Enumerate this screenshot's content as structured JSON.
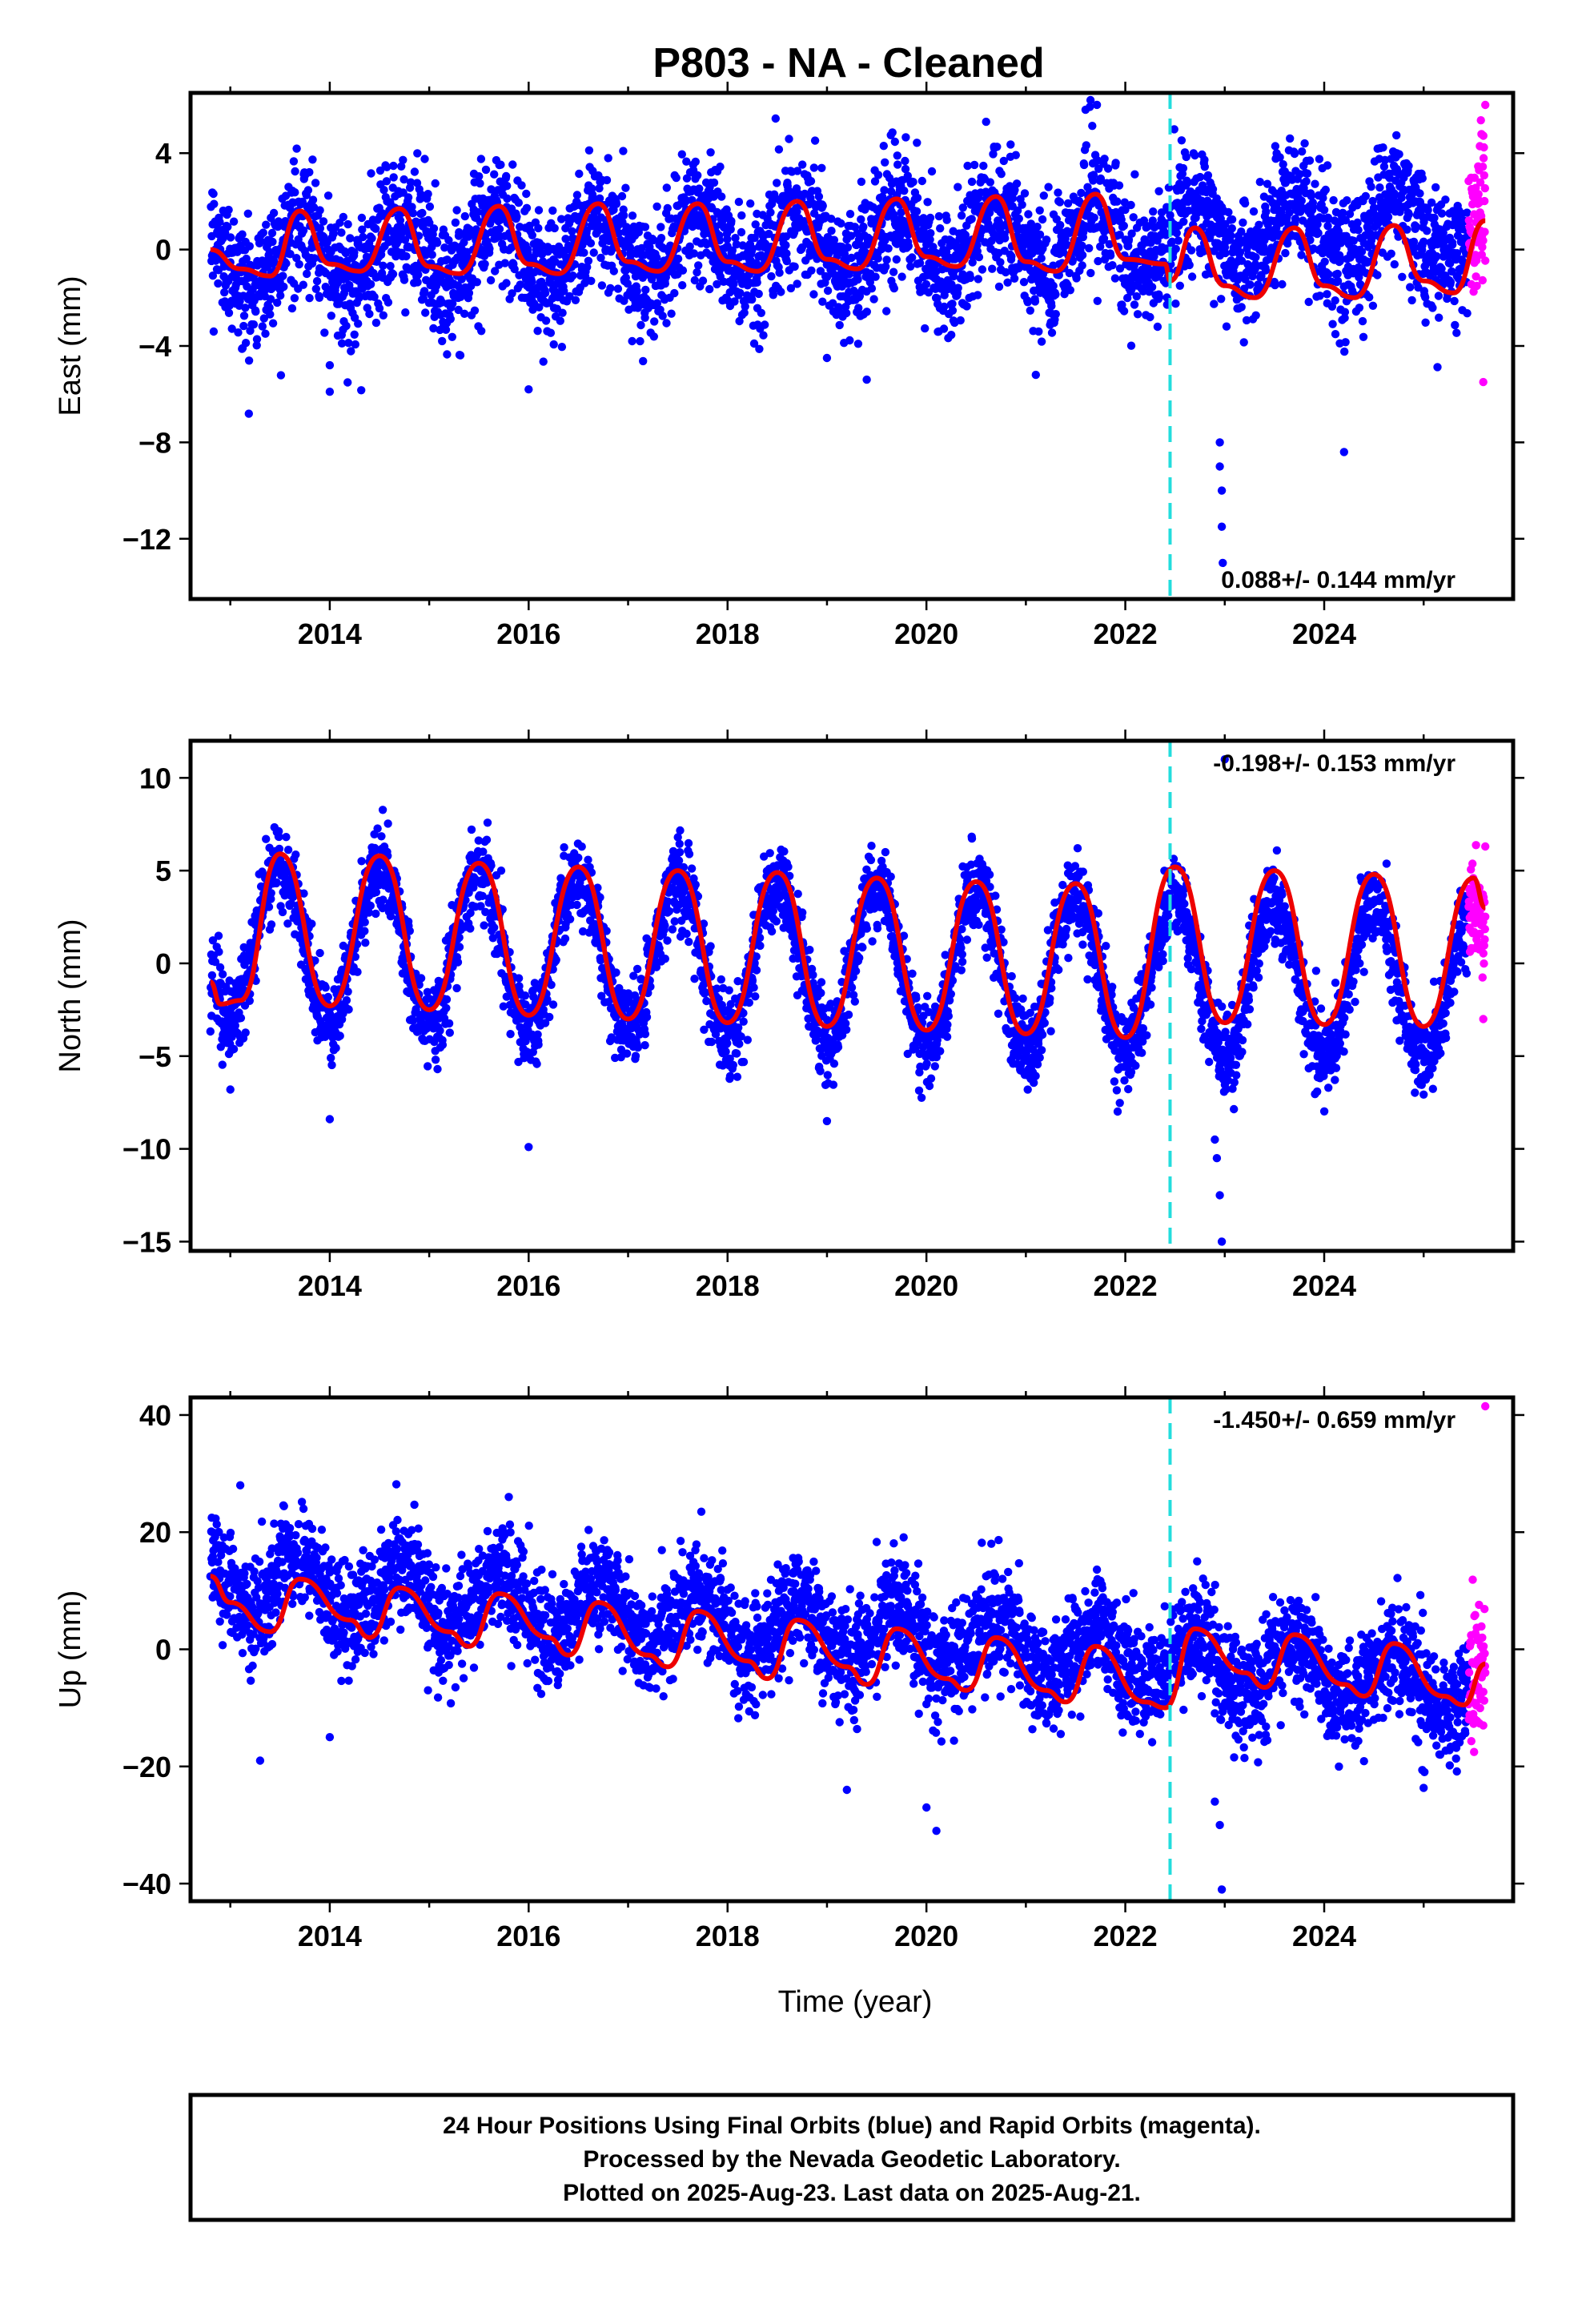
{
  "title": "P803  - NA - Cleaned",
  "x_axis_label": "Time (year)",
  "caption_lines": [
    "24 Hour Positions Using Final Orbits (blue) and Rapid Orbits (magenta).",
    "Processed by the Nevada Geodetic Laboratory.",
    "Plotted on 2025-Aug-23. Last data on 2025-Aug-21."
  ],
  "colors": {
    "final_orbits": "#0000ff",
    "rapid_orbits": "#ff00ff",
    "model_fit": "#ee0000",
    "event_line": "#22dddd"
  },
  "chart_data": [
    {
      "type": "scatter",
      "name": "east",
      "ylabel": "East (mm)",
      "xlim": [
        2012.6,
        2025.9
      ],
      "ylim": [
        -14.5,
        6.5
      ],
      "xticks": [
        2014,
        2016,
        2018,
        2020,
        2022,
        2024
      ],
      "yticks": [
        4,
        0,
        -4,
        -8,
        -12
      ],
      "rate_text": "0.088+/- 0.144 mm/yr",
      "rate_position": "bottom-right",
      "event_line_x": 2022.45,
      "start": 2012.8,
      "end_final": 2025.45,
      "end": 2025.62,
      "seasonal_amplitude": 1.3,
      "seasonal_phase_peak": 2013.7,
      "offset": -0.3,
      "trend_mm_per_yr": 0.088,
      "noise_sd": 1.3,
      "fit_points": [
        [
          2012.8,
          0.0
        ],
        [
          2013.1,
          -0.8
        ],
        [
          2013.4,
          -1.1
        ],
        [
          2013.7,
          1.6
        ],
        [
          2014.0,
          -0.6
        ],
        [
          2014.3,
          -0.9
        ],
        [
          2014.7,
          1.7
        ],
        [
          2015.0,
          -0.7
        ],
        [
          2015.3,
          -1.0
        ],
        [
          2015.7,
          1.8
        ],
        [
          2016.0,
          -0.6
        ],
        [
          2016.3,
          -1.0
        ],
        [
          2016.7,
          1.9
        ],
        [
          2017.0,
          -0.5
        ],
        [
          2017.3,
          -0.9
        ],
        [
          2017.7,
          1.9
        ],
        [
          2018.0,
          -0.5
        ],
        [
          2018.3,
          -0.9
        ],
        [
          2018.7,
          2.0
        ],
        [
          2019.0,
          -0.4
        ],
        [
          2019.3,
          -0.8
        ],
        [
          2019.7,
          2.1
        ],
        [
          2020.0,
          -0.3
        ],
        [
          2020.3,
          -0.7
        ],
        [
          2020.7,
          2.2
        ],
        [
          2021.0,
          -0.5
        ],
        [
          2021.3,
          -0.9
        ],
        [
          2021.7,
          2.3
        ],
        [
          2022.0,
          -0.4
        ],
        [
          2022.4,
          -0.6
        ],
        [
          2022.45,
          -1.3
        ],
        [
          2022.7,
          0.9
        ],
        [
          2023.0,
          -1.5
        ],
        [
          2023.3,
          -2.0
        ],
        [
          2023.7,
          0.9
        ],
        [
          2024.0,
          -1.5
        ],
        [
          2024.3,
          -2.0
        ],
        [
          2024.7,
          1.0
        ],
        [
          2025.0,
          -1.3
        ],
        [
          2025.3,
          -1.8
        ],
        [
          2025.62,
          1.2
        ]
      ],
      "outliers": [
        [
          2014.0,
          -5.9
        ],
        [
          2014.0,
          -4.8
        ],
        [
          2016.0,
          -5.8
        ],
        [
          2019.0,
          -4.5
        ],
        [
          2019.4,
          -5.4
        ],
        [
          2021.1,
          -5.2
        ],
        [
          2022.95,
          -8.0
        ],
        [
          2022.95,
          -9.0
        ],
        [
          2022.97,
          -10.0
        ],
        [
          2022.97,
          -11.5
        ],
        [
          2022.98,
          -13.0
        ],
        [
          2024.2,
          -8.4
        ],
        [
          2021.6,
          5.8
        ],
        [
          2021.65,
          6.2
        ],
        [
          2020.6,
          5.3
        ],
        [
          2025.6,
          -5.5
        ],
        [
          2025.62,
          6.0
        ]
      ]
    },
    {
      "type": "scatter",
      "name": "north",
      "ylabel": "North (mm)",
      "xlim": [
        2012.6,
        2025.9
      ],
      "ylim": [
        -15.5,
        12
      ],
      "xticks": [
        2014,
        2016,
        2018,
        2020,
        2022,
        2024
      ],
      "yticks": [
        10,
        5,
        0,
        -5,
        -10,
        -15
      ],
      "rate_text": "-0.198+/- 0.153 mm/yr",
      "rate_position": "top-right",
      "event_line_x": 2022.45,
      "start": 2012.8,
      "end_final": 2025.45,
      "end": 2025.62,
      "seasonal_amplitude": 4.2,
      "seasonal_phase_peak": 2013.5,
      "offset": 1.3,
      "trend_mm_per_yr": -0.198,
      "noise_sd": 1.1,
      "fit_points": [
        [
          2012.8,
          -1.0
        ],
        [
          2012.9,
          -2.2
        ],
        [
          2013.1,
          -2.0
        ],
        [
          2013.5,
          5.9
        ],
        [
          2014.0,
          -2.3
        ],
        [
          2014.5,
          5.8
        ],
        [
          2015.0,
          -2.5
        ],
        [
          2015.5,
          5.4
        ],
        [
          2016.0,
          -2.8
        ],
        [
          2016.5,
          5.2
        ],
        [
          2017.0,
          -3.0
        ],
        [
          2017.5,
          5.0
        ],
        [
          2018.0,
          -3.2
        ],
        [
          2018.5,
          4.9
        ],
        [
          2019.0,
          -3.4
        ],
        [
          2019.5,
          4.6
        ],
        [
          2020.0,
          -3.6
        ],
        [
          2020.5,
          4.4
        ],
        [
          2021.0,
          -3.8
        ],
        [
          2021.5,
          4.3
        ],
        [
          2022.0,
          -4.0
        ],
        [
          2022.5,
          5.2
        ],
        [
          2023.0,
          -3.2
        ],
        [
          2023.5,
          5.0
        ],
        [
          2024.0,
          -3.3
        ],
        [
          2024.5,
          4.8
        ],
        [
          2025.0,
          -3.4
        ],
        [
          2025.5,
          4.6
        ],
        [
          2025.62,
          3.0
        ]
      ],
      "outliers": [
        [
          2014.0,
          -8.4
        ],
        [
          2016.0,
          -9.9
        ],
        [
          2019.0,
          -8.5
        ],
        [
          2022.9,
          -9.5
        ],
        [
          2022.92,
          -10.5
        ],
        [
          2022.95,
          -12.5
        ],
        [
          2022.97,
          -15.0
        ],
        [
          2023.0,
          11.0
        ],
        [
          2013.0,
          -6.8
        ],
        [
          2025.6,
          -3.0
        ],
        [
          2025.62,
          6.3
        ]
      ]
    },
    {
      "type": "scatter",
      "name": "up",
      "ylabel": "Up (mm)",
      "xlim": [
        2012.6,
        2025.9
      ],
      "ylim": [
        -43,
        43
      ],
      "xticks": [
        2014,
        2016,
        2018,
        2020,
        2022,
        2024
      ],
      "yticks": [
        40,
        20,
        0,
        -20,
        -40
      ],
      "rate_text": "-1.450+/- 0.659 mm/yr",
      "rate_position": "top-right",
      "event_line_x": 2022.45,
      "start": 2012.8,
      "end_final": 2025.45,
      "end": 2025.62,
      "seasonal_amplitude": 5.0,
      "seasonal_phase_peak": 2013.7,
      "offset": 12.0,
      "trend_mm_per_yr": -1.45,
      "noise_sd": 4.5,
      "fit_points": [
        [
          2012.8,
          12.5
        ],
        [
          2013.0,
          8.0
        ],
        [
          2013.4,
          3.0
        ],
        [
          2013.7,
          12.0
        ],
        [
          2014.2,
          5.0
        ],
        [
          2014.4,
          2.0
        ],
        [
          2014.7,
          10.5
        ],
        [
          2015.2,
          3.0
        ],
        [
          2015.4,
          0.5
        ],
        [
          2015.7,
          9.5
        ],
        [
          2016.2,
          2.0
        ],
        [
          2016.4,
          -1.0
        ],
        [
          2016.7,
          8.0
        ],
        [
          2017.2,
          -1.0
        ],
        [
          2017.4,
          -3.0
        ],
        [
          2017.7,
          6.5
        ],
        [
          2018.2,
          -2.0
        ],
        [
          2018.4,
          -5.0
        ],
        [
          2018.7,
          5.0
        ],
        [
          2019.2,
          -3.0
        ],
        [
          2019.4,
          -6.0
        ],
        [
          2019.7,
          3.5
        ],
        [
          2020.2,
          -5.0
        ],
        [
          2020.4,
          -7.0
        ],
        [
          2020.7,
          2.0
        ],
        [
          2021.2,
          -7.0
        ],
        [
          2021.4,
          -9.0
        ],
        [
          2021.7,
          0.5
        ],
        [
          2022.2,
          -9.0
        ],
        [
          2022.4,
          -10.0
        ],
        [
          2022.7,
          3.5
        ],
        [
          2023.2,
          -4.0
        ],
        [
          2023.4,
          -6.5
        ],
        [
          2023.7,
          2.5
        ],
        [
          2024.2,
          -6.0
        ],
        [
          2024.4,
          -8.0
        ],
        [
          2024.7,
          1.0
        ],
        [
          2025.2,
          -8.0
        ],
        [
          2025.4,
          -9.5
        ],
        [
          2025.62,
          -2.5
        ]
      ],
      "outliers": [
        [
          2013.3,
          -19.0
        ],
        [
          2020.1,
          -31.0
        ],
        [
          2020.0,
          -27.0
        ],
        [
          2022.97,
          -41.0
        ],
        [
          2022.95,
          -30.0
        ],
        [
          2022.9,
          -26.0
        ],
        [
          2019.2,
          -24.0
        ],
        [
          2014.0,
          -15.0
        ],
        [
          2013.1,
          28.0
        ],
        [
          2015.8,
          26.0
        ],
        [
          2025.62,
          41.5
        ],
        [
          2025.6,
          -13.0
        ]
      ]
    }
  ]
}
